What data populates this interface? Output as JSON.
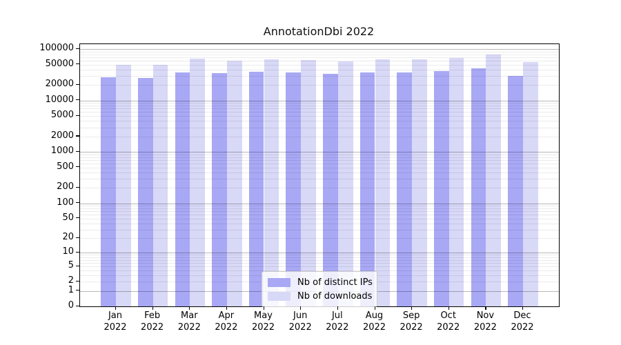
{
  "chart_data": {
    "type": "bar",
    "title": "AnnotationDbi 2022",
    "year": "2022",
    "categories": [
      "Jan",
      "Feb",
      "Mar",
      "Apr",
      "May",
      "Jun",
      "Jul",
      "Aug",
      "Sep",
      "Oct",
      "Nov",
      "Dec"
    ],
    "series": [
      {
        "name": "Nb of distinct IPs",
        "color": "#a8a8f5",
        "values": [
          28500,
          27500,
          34800,
          34000,
          36200,
          35800,
          33500,
          35800,
          34800,
          37600,
          42600,
          30700
        ]
      },
      {
        "name": "Nb of downloads",
        "color": "#d8d8f7",
        "values": [
          48900,
          50000,
          64600,
          60000,
          63200,
          61000,
          57000,
          63200,
          63000,
          68000,
          77800,
          55300
        ]
      }
    ],
    "yscale": "log10(v+1)",
    "ylim": [
      0,
      125000
    ],
    "y_ticks": [
      0,
      1,
      2,
      5,
      10,
      20,
      50,
      100,
      200,
      500,
      1000,
      2000,
      5000,
      10000,
      20000,
      50000,
      100000
    ],
    "grid_major": [
      1,
      10,
      100,
      1000,
      10000,
      100000
    ],
    "legend_position": "lower center",
    "colors": {
      "grid_major": "rgba(0,0,0,0.28)",
      "grid_minor": "rgba(0,0,0,0.08)",
      "spine": "#000000",
      "text": "#000000",
      "background": "#ffffff"
    }
  }
}
